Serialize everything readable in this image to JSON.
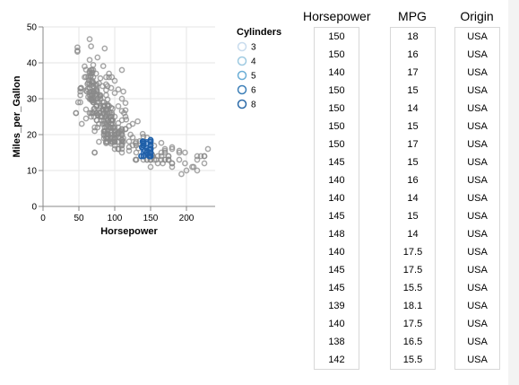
{
  "chart_data": {
    "type": "scatter",
    "xlabel": "Horsepower",
    "ylabel": "Miles_per_Gallon",
    "xlim": [
      0,
      240
    ],
    "ylim": [
      0,
      50
    ],
    "xticks": [
      "0",
      "50",
      "100",
      "150",
      "200"
    ],
    "yticks": [
      "0",
      "10",
      "20",
      "30",
      "40",
      "50"
    ],
    "grid": true,
    "legend": {
      "title": "Cylinders",
      "placement": "right",
      "entries": [
        "3",
        "4",
        "5",
        "6",
        "8"
      ],
      "colors": [
        "#c9dcee",
        "#9ecae1",
        "#6baed6",
        "#3d7fb8",
        "#2b6aa8"
      ]
    },
    "point_color": "#8a8a8a",
    "selected_color": "#2171b5",
    "selection": {
      "x": [
        137,
        151
      ],
      "y": [
        14,
        18.6
      ]
    },
    "points": [
      [
        130,
        18
      ],
      [
        165,
        15
      ],
      [
        150,
        18
      ],
      [
        150,
        16
      ],
      [
        140,
        17
      ],
      [
        198,
        15
      ],
      [
        220,
        14
      ],
      [
        215,
        14
      ],
      [
        225,
        14
      ],
      [
        190,
        15
      ],
      [
        170,
        15
      ],
      [
        160,
        14
      ],
      [
        150,
        15
      ],
      [
        225,
        14
      ],
      [
        95,
        24
      ],
      [
        95,
        22
      ],
      [
        97,
        18
      ],
      [
        85,
        21
      ],
      [
        88,
        27
      ],
      [
        46,
        26
      ],
      [
        87,
        25
      ],
      [
        90,
        24
      ],
      [
        95,
        25
      ],
      [
        113,
        26
      ],
      [
        90,
        21
      ],
      [
        215,
        10
      ],
      [
        200,
        10
      ],
      [
        210,
        11
      ],
      [
        193,
        9
      ],
      [
        88,
        27
      ],
      [
        90,
        28
      ],
      [
        95,
        25
      ],
      [
        100,
        19
      ],
      [
        105,
        16
      ],
      [
        100,
        17
      ],
      [
        88,
        19
      ],
      [
        100,
        18
      ],
      [
        165,
        14
      ],
      [
        175,
        14
      ],
      [
        153,
        14
      ],
      [
        150,
        14
      ],
      [
        180,
        12
      ],
      [
        170,
        13
      ],
      [
        175,
        13
      ],
      [
        110,
        18
      ],
      [
        72,
        22
      ],
      [
        100,
        19
      ],
      [
        88,
        18
      ],
      [
        86,
        23
      ],
      [
        90,
        28
      ],
      [
        70,
        30
      ],
      [
        76,
        30
      ],
      [
        65,
        31
      ],
      [
        69,
        35
      ],
      [
        60,
        27
      ],
      [
        70,
        26
      ],
      [
        95,
        24
      ],
      [
        80,
        25
      ],
      [
        54,
        23
      ],
      [
        90,
        20
      ],
      [
        86,
        21
      ],
      [
        165,
        13
      ],
      [
        175,
        14
      ],
      [
        150,
        15
      ],
      [
        153,
        14
      ],
      [
        150,
        17
      ],
      [
        208,
        11
      ],
      [
        155,
        13
      ],
      [
        160,
        12
      ],
      [
        190,
        13
      ],
      [
        97,
        19
      ],
      [
        150,
        15
      ],
      [
        130,
        13
      ],
      [
        140,
        13
      ],
      [
        150,
        14
      ],
      [
        112,
        18
      ],
      [
        76,
        22
      ],
      [
        87,
        21
      ],
      [
        69,
        26
      ],
      [
        86,
        22
      ],
      [
        92,
        28
      ],
      [
        97,
        23
      ],
      [
        80,
        28
      ],
      [
        88,
        27
      ],
      [
        175,
        13
      ],
      [
        150,
        14
      ],
      [
        145,
        13
      ],
      [
        137,
        14
      ],
      [
        150,
        15
      ],
      [
        198,
        12
      ],
      [
        150,
        13
      ],
      [
        158,
        13
      ],
      [
        150,
        14
      ],
      [
        215,
        13
      ],
      [
        225,
        12
      ],
      [
        175,
        13
      ],
      [
        105,
        18
      ],
      [
        100,
        16
      ],
      [
        100,
        18
      ],
      [
        88,
        18
      ],
      [
        95,
        23
      ],
      [
        46,
        26
      ],
      [
        150,
        11
      ],
      [
        167,
        12
      ],
      [
        170,
        13
      ],
      [
        180,
        12
      ],
      [
        100,
        18
      ],
      [
        88,
        20
      ],
      [
        72,
        21
      ],
      [
        94,
        22
      ],
      [
        90,
        18
      ],
      [
        85,
        19
      ],
      [
        107,
        21
      ],
      [
        90,
        26
      ],
      [
        145,
        15
      ],
      [
        230,
        16
      ],
      [
        49,
        29
      ],
      [
        75,
        24
      ],
      [
        91,
        20
      ],
      [
        112,
        19
      ],
      [
        150,
        15
      ],
      [
        110,
        24
      ],
      [
        122,
        20
      ],
      [
        180,
        11
      ],
      [
        95,
        20
      ],
      [
        100,
        21
      ],
      [
        100,
        19
      ],
      [
        67,
        32
      ],
      [
        80,
        31
      ],
      [
        65,
        26
      ],
      [
        75,
        32
      ],
      [
        100,
        25
      ],
      [
        110,
        16
      ],
      [
        105,
        16
      ],
      [
        140,
        18
      ],
      [
        150,
        16
      ],
      [
        150,
        13
      ],
      [
        140,
        14
      ],
      [
        150,
        14
      ],
      [
        83,
        29
      ],
      [
        67,
        26
      ],
      [
        78,
        26
      ],
      [
        52,
        31
      ],
      [
        61,
        32
      ],
      [
        75,
        28
      ],
      [
        75,
        24
      ],
      [
        75,
        26
      ],
      [
        97,
        24
      ],
      [
        93,
        26
      ],
      [
        67,
        31
      ],
      [
        95,
        19
      ],
      [
        105,
        18
      ],
      [
        72,
        15
      ],
      [
        72,
        15
      ],
      [
        170,
        16
      ],
      [
        145,
        15
      ],
      [
        150,
        16
      ],
      [
        148,
        14
      ],
      [
        110,
        17
      ],
      [
        105,
        16
      ],
      [
        110,
        15
      ],
      [
        95,
        18
      ],
      [
        110,
        21
      ],
      [
        110,
        20
      ],
      [
        129,
        13
      ],
      [
        75,
        29
      ],
      [
        83,
        23
      ],
      [
        100,
        20
      ],
      [
        78,
        23
      ],
      [
        96,
        24
      ],
      [
        71,
        25
      ],
      [
        97,
        24
      ],
      [
        97,
        18
      ],
      [
        70,
        29
      ],
      [
        90,
        19
      ],
      [
        95,
        23
      ],
      [
        88,
        23
      ],
      [
        98,
        22
      ],
      [
        115,
        25
      ],
      [
        53,
        33
      ],
      [
        86,
        28
      ],
      [
        81,
        25
      ],
      [
        92,
        25
      ],
      [
        79,
        26
      ],
      [
        83,
        27
      ],
      [
        140,
        17.5
      ],
      [
        150,
        16
      ],
      [
        120,
        15.5
      ],
      [
        152,
        14.5
      ],
      [
        100,
        22
      ],
      [
        105,
        22
      ],
      [
        81,
        24
      ],
      [
        90,
        22.5
      ],
      [
        52,
        29
      ],
      [
        60,
        24.5
      ],
      [
        70,
        29
      ],
      [
        53,
        33
      ],
      [
        100,
        20
      ],
      [
        78,
        18
      ],
      [
        110,
        18.5
      ],
      [
        95,
        17.5
      ],
      [
        71,
        29.5
      ],
      [
        70,
        32
      ],
      [
        75,
        28
      ],
      [
        72,
        26.5
      ],
      [
        102,
        20
      ],
      [
        150,
        13
      ],
      [
        88,
        19
      ],
      [
        108,
        19
      ],
      [
        120,
        16.5
      ],
      [
        180,
        16.5
      ],
      [
        145,
        13
      ],
      [
        130,
        13
      ],
      [
        150,
        13
      ],
      [
        68,
        31.5
      ],
      [
        80,
        30
      ],
      [
        58,
        36
      ],
      [
        96,
        25.5
      ],
      [
        70,
        33.5
      ],
      [
        145,
        17.5
      ],
      [
        110,
        17
      ],
      [
        145,
        15.5
      ],
      [
        130,
        15
      ],
      [
        110,
        17.5
      ],
      [
        105,
        20.5
      ],
      [
        100,
        19
      ],
      [
        98,
        18.5
      ],
      [
        180,
        16
      ],
      [
        170,
        15.5
      ],
      [
        190,
        15.5
      ],
      [
        149,
        16
      ],
      [
        78,
        29
      ],
      [
        88,
        24.5
      ],
      [
        75,
        26
      ],
      [
        89,
        25.5
      ],
      [
        63,
        30.5
      ],
      [
        83,
        33.5
      ],
      [
        67,
        30
      ],
      [
        78,
        30.5
      ],
      [
        97,
        22
      ],
      [
        110,
        21.5
      ],
      [
        110,
        21.5
      ],
      [
        48,
        43.1
      ],
      [
        66,
        36.1
      ],
      [
        52,
        32.8
      ],
      [
        70,
        39.4
      ],
      [
        60,
        36.1
      ],
      [
        110,
        19.9
      ],
      [
        140,
        19.4
      ],
      [
        139,
        20.2
      ],
      [
        105,
        19.2
      ],
      [
        95,
        20.5
      ],
      [
        85,
        20.2
      ],
      [
        88,
        25.1
      ],
      [
        100,
        20.5
      ],
      [
        90,
        19.4
      ],
      [
        105,
        20.6
      ],
      [
        85,
        20.8
      ],
      [
        110,
        18.6
      ],
      [
        120,
        18.1
      ],
      [
        145,
        19.2
      ],
      [
        165,
        17.7
      ],
      [
        139,
        18.1
      ],
      [
        140,
        17.5
      ],
      [
        68,
        30
      ],
      [
        95,
        27.5
      ],
      [
        97,
        27.2
      ],
      [
        75,
        30.9
      ],
      [
        95,
        21.1
      ],
      [
        105,
        23.2
      ],
      [
        85,
        23.8
      ],
      [
        97,
        23.9
      ],
      [
        103,
        20.3
      ],
      [
        125,
        17
      ],
      [
        115,
        21.6
      ],
      [
        133,
        16.2
      ],
      [
        71,
        31.5
      ],
      [
        68,
        29.5
      ],
      [
        115,
        21.5
      ],
      [
        85,
        19.8
      ],
      [
        88,
        22.3
      ],
      [
        90,
        20.2
      ],
      [
        110,
        20.6
      ],
      [
        130,
        17
      ],
      [
        129,
        17.6
      ],
      [
        138,
        16.5
      ],
      [
        135,
        18.2
      ],
      [
        155,
        16.9
      ],
      [
        142,
        15.5
      ],
      [
        125,
        19.2
      ],
      [
        150,
        18.5
      ],
      [
        71,
        31.9
      ],
      [
        65,
        34.1
      ],
      [
        80,
        35.7
      ],
      [
        80,
        27.4
      ],
      [
        77,
        25.4
      ],
      [
        125,
        23
      ],
      [
        71,
        27.2
      ],
      [
        90,
        23.9
      ],
      [
        70,
        34.2
      ],
      [
        70,
        34.5
      ],
      [
        65,
        31.8
      ],
      [
        69,
        37.3
      ],
      [
        90,
        28.4
      ],
      [
        115,
        28.8
      ],
      [
        115,
        26.8
      ],
      [
        90,
        33.5
      ],
      [
        76,
        41.5
      ],
      [
        60,
        38.1
      ],
      [
        70,
        32.1
      ],
      [
        65,
        37.2
      ],
      [
        90,
        28
      ],
      [
        88,
        26.4
      ],
      [
        90,
        24.3
      ],
      [
        90,
        19.1
      ],
      [
        78,
        34.3
      ],
      [
        90,
        29.8
      ],
      [
        75,
        31.3
      ],
      [
        92,
        37
      ],
      [
        75,
        32.2
      ],
      [
        65,
        46.6
      ],
      [
        105,
        27.9
      ],
      [
        65,
        40.8
      ],
      [
        48,
        44.3
      ],
      [
        48,
        43.4
      ],
      [
        67,
        36.4
      ],
      [
        67,
        30
      ],
      [
        67,
        44.6
      ],
      [
        67,
        33.8
      ],
      [
        67,
        29.8
      ],
      [
        62,
        32.7
      ],
      [
        132,
        23.7
      ],
      [
        100,
        35
      ],
      [
        88,
        32.4
      ],
      [
        72,
        27.2
      ],
      [
        84,
        26.6
      ],
      [
        84,
        25.8
      ],
      [
        92,
        23.5
      ],
      [
        110,
        30
      ],
      [
        84,
        39.1
      ],
      [
        58,
        39
      ],
      [
        64,
        35.1
      ],
      [
        60,
        32.3
      ],
      [
        67,
        37
      ],
      [
        65,
        37.7
      ],
      [
        62,
        34.1
      ],
      [
        68,
        34.7
      ],
      [
        63,
        34.4
      ],
      [
        65,
        29.9
      ],
      [
        65,
        33
      ],
      [
        74,
        33.7
      ],
      [
        75,
        32.4
      ],
      [
        75,
        32.9
      ],
      [
        100,
        31.6
      ],
      [
        74,
        28.1
      ],
      [
        80,
        30.7
      ],
      [
        76,
        25.4
      ],
      [
        116,
        24.2
      ],
      [
        120,
        22.4
      ],
      [
        110,
        26.6
      ],
      [
        105,
        20.2
      ],
      [
        88,
        17.6
      ],
      [
        85,
        28
      ],
      [
        88,
        27
      ],
      [
        88,
        34
      ],
      [
        88,
        31
      ],
      [
        85,
        29
      ],
      [
        84,
        27
      ],
      [
        90,
        24
      ],
      [
        92,
        36
      ],
      [
        74,
        37
      ],
      [
        68,
        31
      ],
      [
        68,
        38
      ],
      [
        63,
        36
      ],
      [
        70,
        36
      ],
      [
        88,
        36
      ],
      [
        75,
        34
      ],
      [
        70,
        38
      ],
      [
        67,
        32
      ],
      [
        67,
        38
      ],
      [
        67,
        25
      ],
      [
        110,
        38
      ],
      [
        85,
        26
      ],
      [
        92,
        22
      ],
      [
        112,
        32
      ],
      [
        96,
        36
      ],
      [
        84,
        27
      ],
      [
        90,
        27
      ],
      [
        86,
        44
      ],
      [
        52,
        32
      ],
      [
        84,
        28
      ],
      [
        79,
        31
      ],
      [
        82,
        25
      ],
      [
        96,
        26
      ],
      [
        70,
        30
      ],
      [
        95,
        33
      ],
      [
        105,
        32.6
      ],
      [
        69,
        29.5
      ]
    ]
  },
  "table": {
    "columns": [
      {
        "header": "Horsepower",
        "values": [
          "150",
          "150",
          "140",
          "150",
          "150",
          "150",
          "150",
          "145",
          "140",
          "140",
          "145",
          "148",
          "140",
          "145",
          "145",
          "139",
          "140",
          "138",
          "142"
        ]
      },
      {
        "header": "MPG",
        "values": [
          "18",
          "16",
          "17",
          "15",
          "14",
          "15",
          "17",
          "15",
          "16",
          "14",
          "15",
          "14",
          "17.5",
          "17.5",
          "15.5",
          "18.1",
          "17.5",
          "16.5",
          "15.5"
        ]
      },
      {
        "header": "Origin",
        "values": [
          "USA",
          "USA",
          "USA",
          "USA",
          "USA",
          "USA",
          "USA",
          "USA",
          "USA",
          "USA",
          "USA",
          "USA",
          "USA",
          "USA",
          "USA",
          "USA",
          "USA",
          "USA",
          "USA"
        ]
      }
    ]
  }
}
